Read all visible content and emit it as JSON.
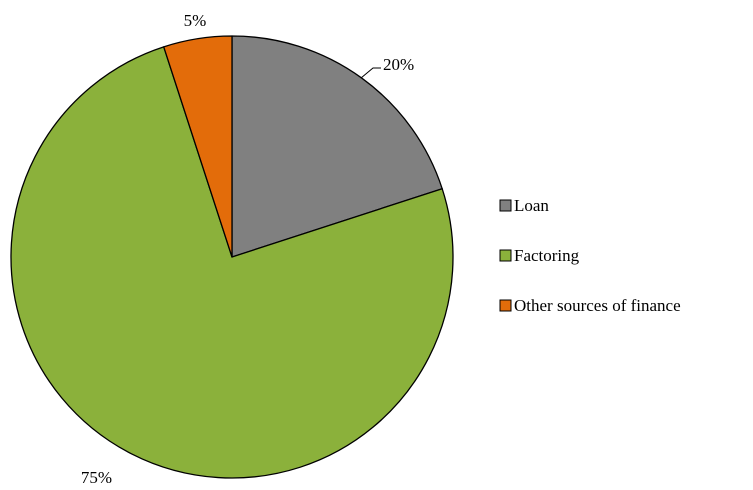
{
  "chart_data": {
    "type": "pie",
    "title": "",
    "categories": [
      "Loan",
      "Factoring",
      "Other sources of finance"
    ],
    "values": [
      20,
      75,
      5
    ],
    "data_labels": [
      "20%",
      "75%",
      "5%"
    ],
    "unit": "%",
    "colors": [
      "#808080",
      "#8BB13B",
      "#E36C0A"
    ],
    "start_angle_deg": 0,
    "direction": "clockwise",
    "legend_placement": "right"
  }
}
